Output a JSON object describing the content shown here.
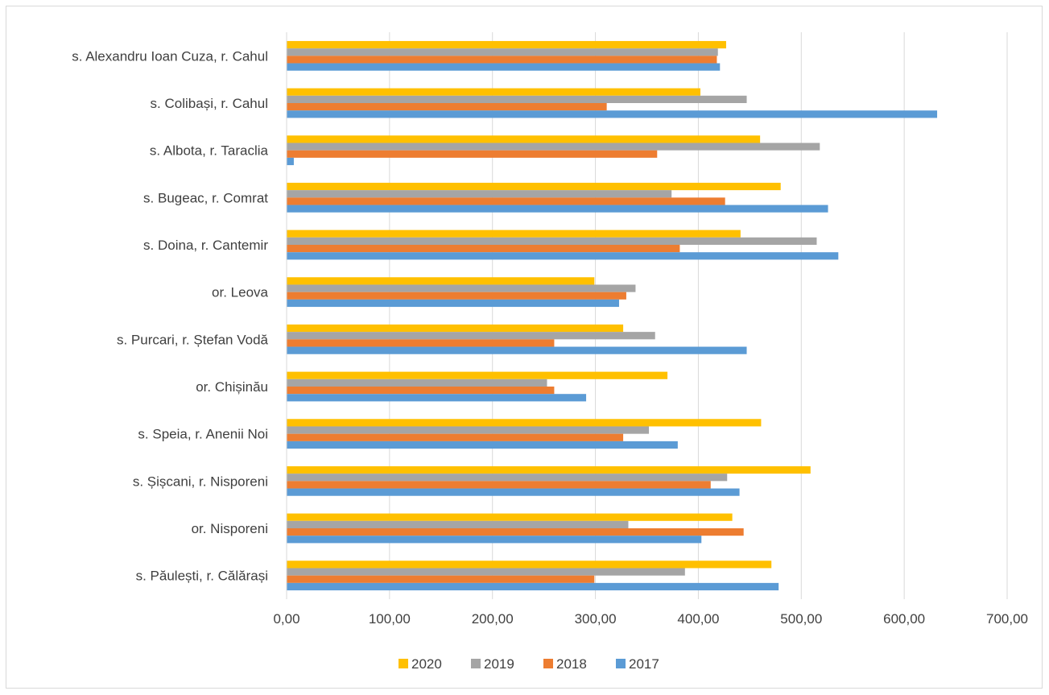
{
  "chart_data": {
    "type": "bar",
    "orientation": "horizontal",
    "title": "",
    "xlabel": "",
    "ylabel": "",
    "xlim": [
      0,
      700
    ],
    "x_ticks": [
      "0,00",
      "100,00",
      "200,00",
      "300,00",
      "400,00",
      "500,00",
      "600,00",
      "700,00"
    ],
    "grid": true,
    "legend_position": "bottom",
    "categories": [
      "s. Alexandru Ioan Cuza, r. Cahul",
      "s. Colibași, r. Cahul",
      "s. Albota, r. Taraclia",
      "s. Bugeac, r. Comrat",
      "s. Doina, r. Cantemir",
      "or. Leova",
      "s. Purcari, r. Ștefan Vodă",
      "or. Chișinău",
      "s. Speia, r. Anenii Noi",
      "s. Șișcani, r. Nisporeni",
      "or. Nisporeni",
      "s. Păulești, r. Călărași"
    ],
    "series": [
      {
        "name": "2020",
        "color": "#ffc000",
        "values": [
          427,
          402,
          460,
          480,
          441,
          299,
          327,
          370,
          461,
          509,
          433,
          471
        ]
      },
      {
        "name": "2019",
        "color": "#a5a5a5",
        "values": [
          419,
          447,
          518,
          374,
          515,
          339,
          358,
          253,
          352,
          428,
          332,
          387
        ]
      },
      {
        "name": "2018",
        "color": "#ed7d31",
        "values": [
          418,
          311,
          360,
          426,
          382,
          330,
          260,
          260,
          327,
          412,
          444,
          299
        ]
      },
      {
        "name": "2017",
        "color": "#5b9bd5",
        "values": [
          421,
          632,
          7,
          526,
          536,
          323,
          447,
          291,
          380,
          440,
          403,
          478
        ]
      }
    ]
  }
}
